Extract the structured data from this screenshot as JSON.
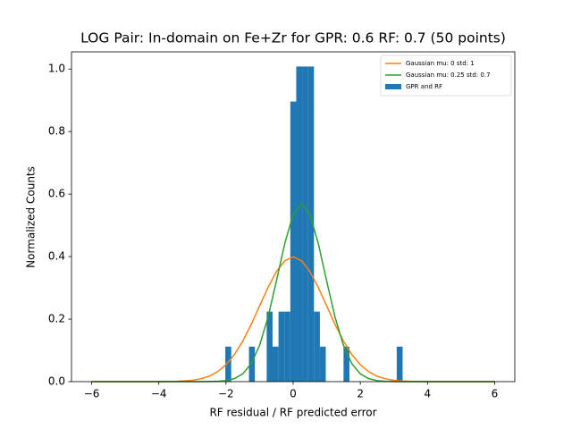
{
  "chart_data": {
    "type": "histogram",
    "title": "LOG Pair: In-domain on Fe+Zr for GPR: 0.6 RF: 0.7 (50 points)",
    "xlabel": "RF residual / RF predicted error",
    "ylabel": "Normalized Counts",
    "histogram": {
      "name": "GPR and RF",
      "color": "#1f77b4",
      "bins": [
        -2.02,
        -1.844,
        -1.668,
        -1.492,
        -1.316,
        -1.14,
        -0.964,
        -0.788,
        -0.612,
        -0.436,
        -0.26,
        -0.084,
        0.092,
        0.268,
        0.444,
        0.62,
        0.796,
        0.972,
        1.148,
        1.324,
        1.5,
        1.676,
        1.852,
        2.028,
        2.204,
        2.38,
        2.556,
        2.732,
        2.908,
        3.084,
        3.26
      ],
      "counts": [
        0.112,
        0,
        0,
        0,
        0.112,
        0,
        0,
        0.224,
        0.112,
        0.224,
        0.224,
        0.896,
        1.008,
        1.008,
        1.008,
        0.224,
        0.112,
        0,
        0,
        0,
        0.112,
        0,
        0,
        0,
        0,
        0,
        0,
        0,
        0,
        0.112
      ]
    },
    "x": [
      -6,
      -5,
      -4,
      -3.5,
      -3,
      -2.75,
      -2.5,
      -2.25,
      -2,
      -1.75,
      -1.5,
      -1.25,
      -1,
      -0.75,
      -0.5,
      -0.25,
      0,
      0.25,
      0.5,
      0.75,
      1,
      1.25,
      1.5,
      1.75,
      2,
      2.25,
      2.5,
      2.75,
      3,
      3.25,
      3.5,
      4,
      5,
      6
    ],
    "series": [
      {
        "name": "Gaussian mu: 0 std: 1",
        "color": "#ff7f0e",
        "values": [
          0,
          0,
          0.0001,
          0.0009,
          0.0044,
          0.0091,
          0.0175,
          0.0317,
          0.054,
          0.0863,
          0.1295,
          0.1826,
          0.242,
          0.3011,
          0.3521,
          0.3867,
          0.3989,
          0.3867,
          0.3521,
          0.3011,
          0.242,
          0.1826,
          0.1295,
          0.0863,
          0.054,
          0.0317,
          0.0175,
          0.0091,
          0.0044,
          0.002,
          0.0009,
          0.0001,
          0,
          0
        ]
      },
      {
        "name": "Gaussian mu: 0.25 std: 0.7",
        "color": "#2ca02c",
        "values": [
          0,
          0,
          0,
          0,
          0,
          0.0001,
          0.0003,
          0.001,
          0.0033,
          0.0096,
          0.025,
          0.0574,
          0.1157,
          0.2054,
          0.321,
          0.4416,
          0.5347,
          0.5699,
          0.5347,
          0.4416,
          0.321,
          0.2054,
          0.1157,
          0.0574,
          0.025,
          0.0096,
          0.0033,
          0.001,
          0.0003,
          0.0001,
          0,
          0,
          0,
          0
        ]
      }
    ],
    "xlim": [
      -6.6,
      6.6
    ],
    "ylim": [
      0,
      1.055
    ],
    "xticks": [
      {
        "value": -6,
        "label": "−6"
      },
      {
        "value": -4,
        "label": "−4"
      },
      {
        "value": -2,
        "label": "−2"
      },
      0,
      2,
      4,
      6
    ],
    "yticks": [
      {
        "value": 0,
        "label": "0.0"
      },
      {
        "value": 0.2,
        "label": "0.2"
      },
      {
        "value": 0.4,
        "label": "0.4"
      },
      {
        "value": 0.6,
        "label": "0.6"
      },
      {
        "value": 0.8,
        "label": "0.8"
      },
      {
        "value": 1,
        "label": "1.0"
      }
    ],
    "legend": "upper right"
  }
}
